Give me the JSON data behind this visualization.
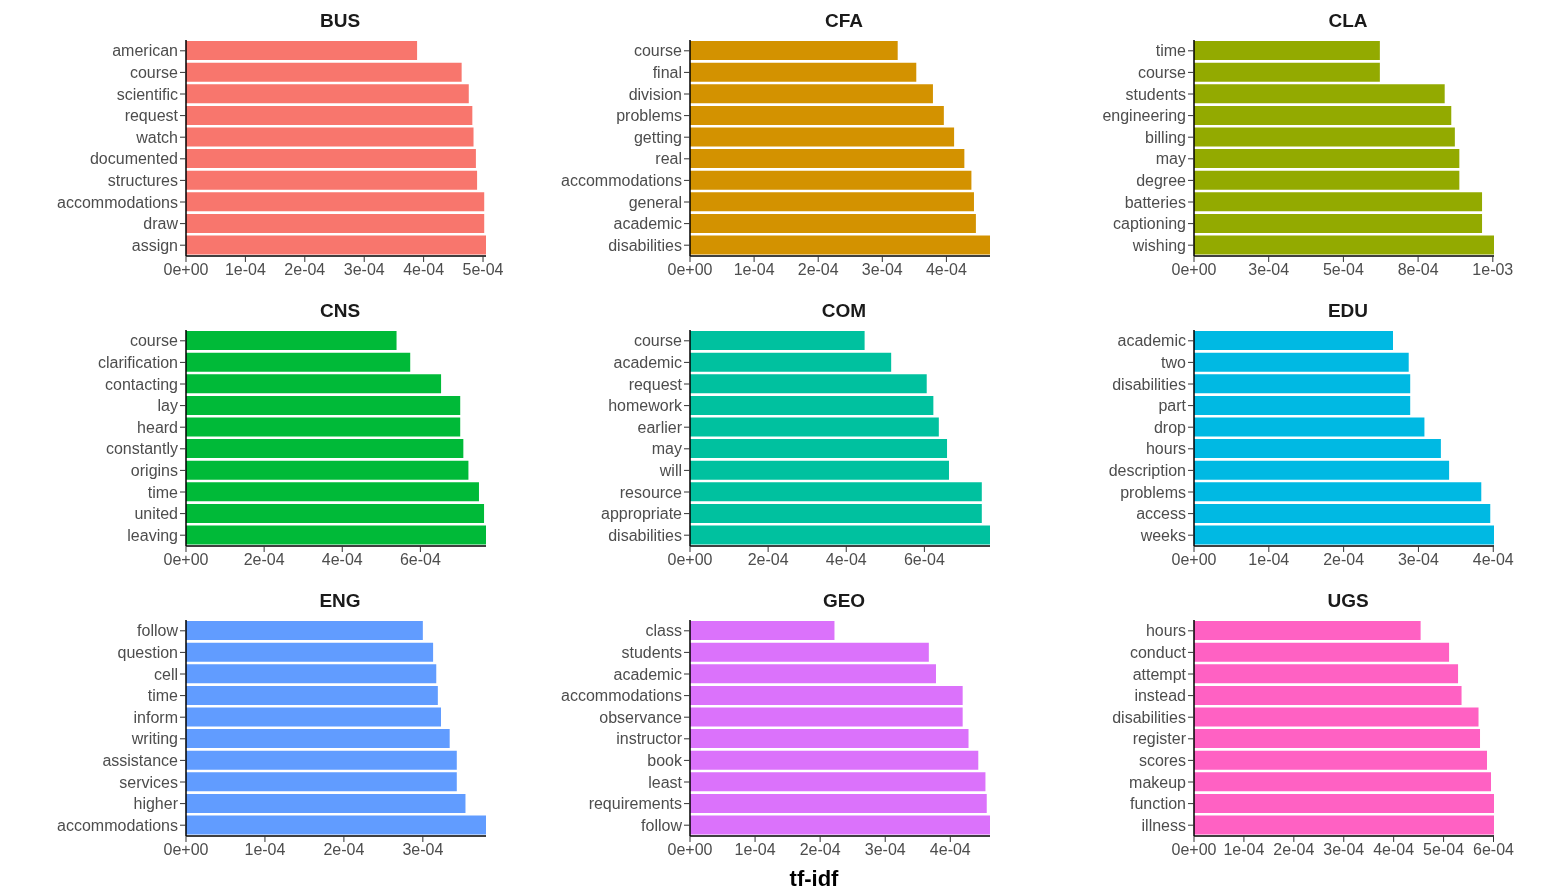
{
  "chart_data": [
    {
      "type": "bar",
      "orientation": "horizontal",
      "title": "BUS",
      "color": "#f8766d",
      "categories": [
        "american",
        "course",
        "scientific",
        "request",
        "watch",
        "documented",
        "structures",
        "accommodations",
        "draw",
        "assign"
      ],
      "values": [
        0.000389,
        0.000464,
        0.000476,
        0.000482,
        0.000484,
        0.000488,
        0.00049,
        0.000502,
        0.000502,
        0.000505
      ],
      "xlim": [
        0,
        0.000505
      ],
      "xticks": [
        {
          "value": 0,
          "label": "0e+00"
        },
        {
          "value": 0.0001,
          "label": "1e-04"
        },
        {
          "value": 0.0002,
          "label": "2e-04"
        },
        {
          "value": 0.0003,
          "label": "3e-04"
        },
        {
          "value": 0.0004,
          "label": "4e-04"
        },
        {
          "value": 0.0005,
          "label": "5e-04"
        }
      ]
    },
    {
      "type": "bar",
      "orientation": "horizontal",
      "title": "CFA",
      "color": "#d39200",
      "categories": [
        "course",
        "final",
        "division",
        "problems",
        "getting",
        "real",
        "accommodations",
        "general",
        "academic",
        "disabilities"
      ],
      "values": [
        0.000324,
        0.000353,
        0.000379,
        0.000396,
        0.000412,
        0.000428,
        0.000439,
        0.000443,
        0.000446,
        0.000468
      ],
      "xlim": [
        0,
        0.000468
      ],
      "xticks": [
        {
          "value": 0,
          "label": "0e+00"
        },
        {
          "value": 0.0001,
          "label": "1e-04"
        },
        {
          "value": 0.0002,
          "label": "2e-04"
        },
        {
          "value": 0.0003,
          "label": "3e-04"
        },
        {
          "value": 0.0004,
          "label": "4e-04"
        }
      ]
    },
    {
      "type": "bar",
      "orientation": "horizontal",
      "title": "CLA",
      "color": "#93aa00",
      "categories": [
        "time",
        "course",
        "students",
        "engineering",
        "billing",
        "may",
        "degree",
        "batteries",
        "captioning",
        "wishing"
      ],
      "values": [
        0.000622,
        0.000622,
        0.000839,
        0.000861,
        0.000873,
        0.000888,
        0.000888,
        0.000964,
        0.000964,
        0.001004
      ],
      "xlim": [
        0,
        0.001004
      ],
      "xticks": [
        {
          "value": 0,
          "label": "0e+00"
        },
        {
          "value": 0.00025,
          "label": "3e-04"
        },
        {
          "value": 0.0005,
          "label": "5e-04"
        },
        {
          "value": 0.00075,
          "label": "8e-04"
        },
        {
          "value": 0.001,
          "label": "1e-03"
        }
      ]
    },
    {
      "type": "bar",
      "orientation": "horizontal",
      "title": "CNS",
      "color": "#00ba38",
      "categories": [
        "course",
        "clarification",
        "contacting",
        "lay",
        "heard",
        "constantly",
        "origins",
        "time",
        "united",
        "leaving"
      ],
      "values": [
        0.000539,
        0.000574,
        0.000653,
        0.000702,
        0.000702,
        0.00071,
        0.000723,
        0.00075,
        0.000763,
        0.000768
      ],
      "xlim": [
        0,
        0.000768
      ],
      "xticks": [
        {
          "value": 0,
          "label": "0e+00"
        },
        {
          "value": 0.0002,
          "label": "2e-04"
        },
        {
          "value": 0.0004,
          "label": "4e-04"
        },
        {
          "value": 0.0006,
          "label": "6e-04"
        }
      ]
    },
    {
      "type": "bar",
      "orientation": "horizontal",
      "title": "COM",
      "color": "#00c19f",
      "categories": [
        "course",
        "academic",
        "request",
        "homework",
        "earlier",
        "may",
        "will",
        "resource",
        "appropriate",
        "disabilities"
      ],
      "values": [
        0.000447,
        0.000515,
        0.000606,
        0.000623,
        0.000637,
        0.000658,
        0.000663,
        0.000747,
        0.000747,
        0.000768
      ],
      "xlim": [
        0,
        0.000768
      ],
      "xticks": [
        {
          "value": 0,
          "label": "0e+00"
        },
        {
          "value": 0.0002,
          "label": "2e-04"
        },
        {
          "value": 0.0004,
          "label": "4e-04"
        },
        {
          "value": 0.0006,
          "label": "6e-04"
        }
      ]
    },
    {
      "type": "bar",
      "orientation": "horizontal",
      "title": "EDU",
      "color": "#00b9e3",
      "categories": [
        "academic",
        "two",
        "disabilities",
        "part",
        "drop",
        "hours",
        "description",
        "problems",
        "access",
        "weeks"
      ],
      "values": [
        0.000266,
        0.000287,
        0.000289,
        0.000289,
        0.000308,
        0.00033,
        0.000341,
        0.000384,
        0.000396,
        0.000401
      ],
      "xlim": [
        0,
        0.000401
      ],
      "xticks": [
        {
          "value": 0,
          "label": "0e+00"
        },
        {
          "value": 0.0001,
          "label": "1e-04"
        },
        {
          "value": 0.0002,
          "label": "2e-04"
        },
        {
          "value": 0.0003,
          "label": "3e-04"
        },
        {
          "value": 0.0004,
          "label": "4e-04"
        }
      ]
    },
    {
      "type": "bar",
      "orientation": "horizontal",
      "title": "ENG",
      "color": "#619cff",
      "categories": [
        "follow",
        "question",
        "cell",
        "time",
        "inform",
        "writing",
        "assistance",
        "services",
        "higher",
        "accommodations"
      ],
      "values": [
        0.0003,
        0.000313,
        0.000317,
        0.000319,
        0.000323,
        0.000334,
        0.000343,
        0.000343,
        0.000354,
        0.00038
      ],
      "xlim": [
        0,
        0.00038
      ],
      "xticks": [
        {
          "value": 0,
          "label": "0e+00"
        },
        {
          "value": 0.0001,
          "label": "1e-04"
        },
        {
          "value": 0.0002,
          "label": "2e-04"
        },
        {
          "value": 0.0003,
          "label": "3e-04"
        }
      ]
    },
    {
      "type": "bar",
      "orientation": "horizontal",
      "title": "GEO",
      "xlabel": "tf-idf",
      "color": "#db72fb",
      "categories": [
        "class",
        "students",
        "academic",
        "accommodations",
        "observance",
        "instructor",
        "book",
        "least",
        "requirements",
        "follow"
      ],
      "values": [
        0.000222,
        0.000367,
        0.000378,
        0.000419,
        0.000419,
        0.000428,
        0.000443,
        0.000454,
        0.000456,
        0.000461
      ],
      "xlim": [
        0,
        0.000461
      ],
      "xticks": [
        {
          "value": 0,
          "label": "0e+00"
        },
        {
          "value": 0.0001,
          "label": "1e-04"
        },
        {
          "value": 0.0002,
          "label": "2e-04"
        },
        {
          "value": 0.0003,
          "label": "3e-04"
        },
        {
          "value": 0.0004,
          "label": "4e-04"
        }
      ]
    },
    {
      "type": "bar",
      "orientation": "horizontal",
      "title": "UGS",
      "color": "#ff61c3",
      "categories": [
        "hours",
        "conduct",
        "attempt",
        "instead",
        "disabilities",
        "register",
        "scores",
        "makeup",
        "function",
        "illness"
      ],
      "values": [
        0.000454,
        0.000511,
        0.000529,
        0.000536,
        0.00057,
        0.000573,
        0.000587,
        0.000595,
        0.000601,
        0.000601
      ],
      "xlim": [
        0,
        0.000601
      ],
      "xticks": [
        {
          "value": 0,
          "label": "0e+00"
        },
        {
          "value": 0.0001,
          "label": "1e-04"
        },
        {
          "value": 0.0002,
          "label": "2e-04"
        },
        {
          "value": 0.0003,
          "label": "3e-04"
        },
        {
          "value": 0.0004,
          "label": "4e-04"
        },
        {
          "value": 0.0005,
          "label": "5e-04"
        },
        {
          "value": 0.0006,
          "label": "6e-04"
        }
      ]
    }
  ]
}
